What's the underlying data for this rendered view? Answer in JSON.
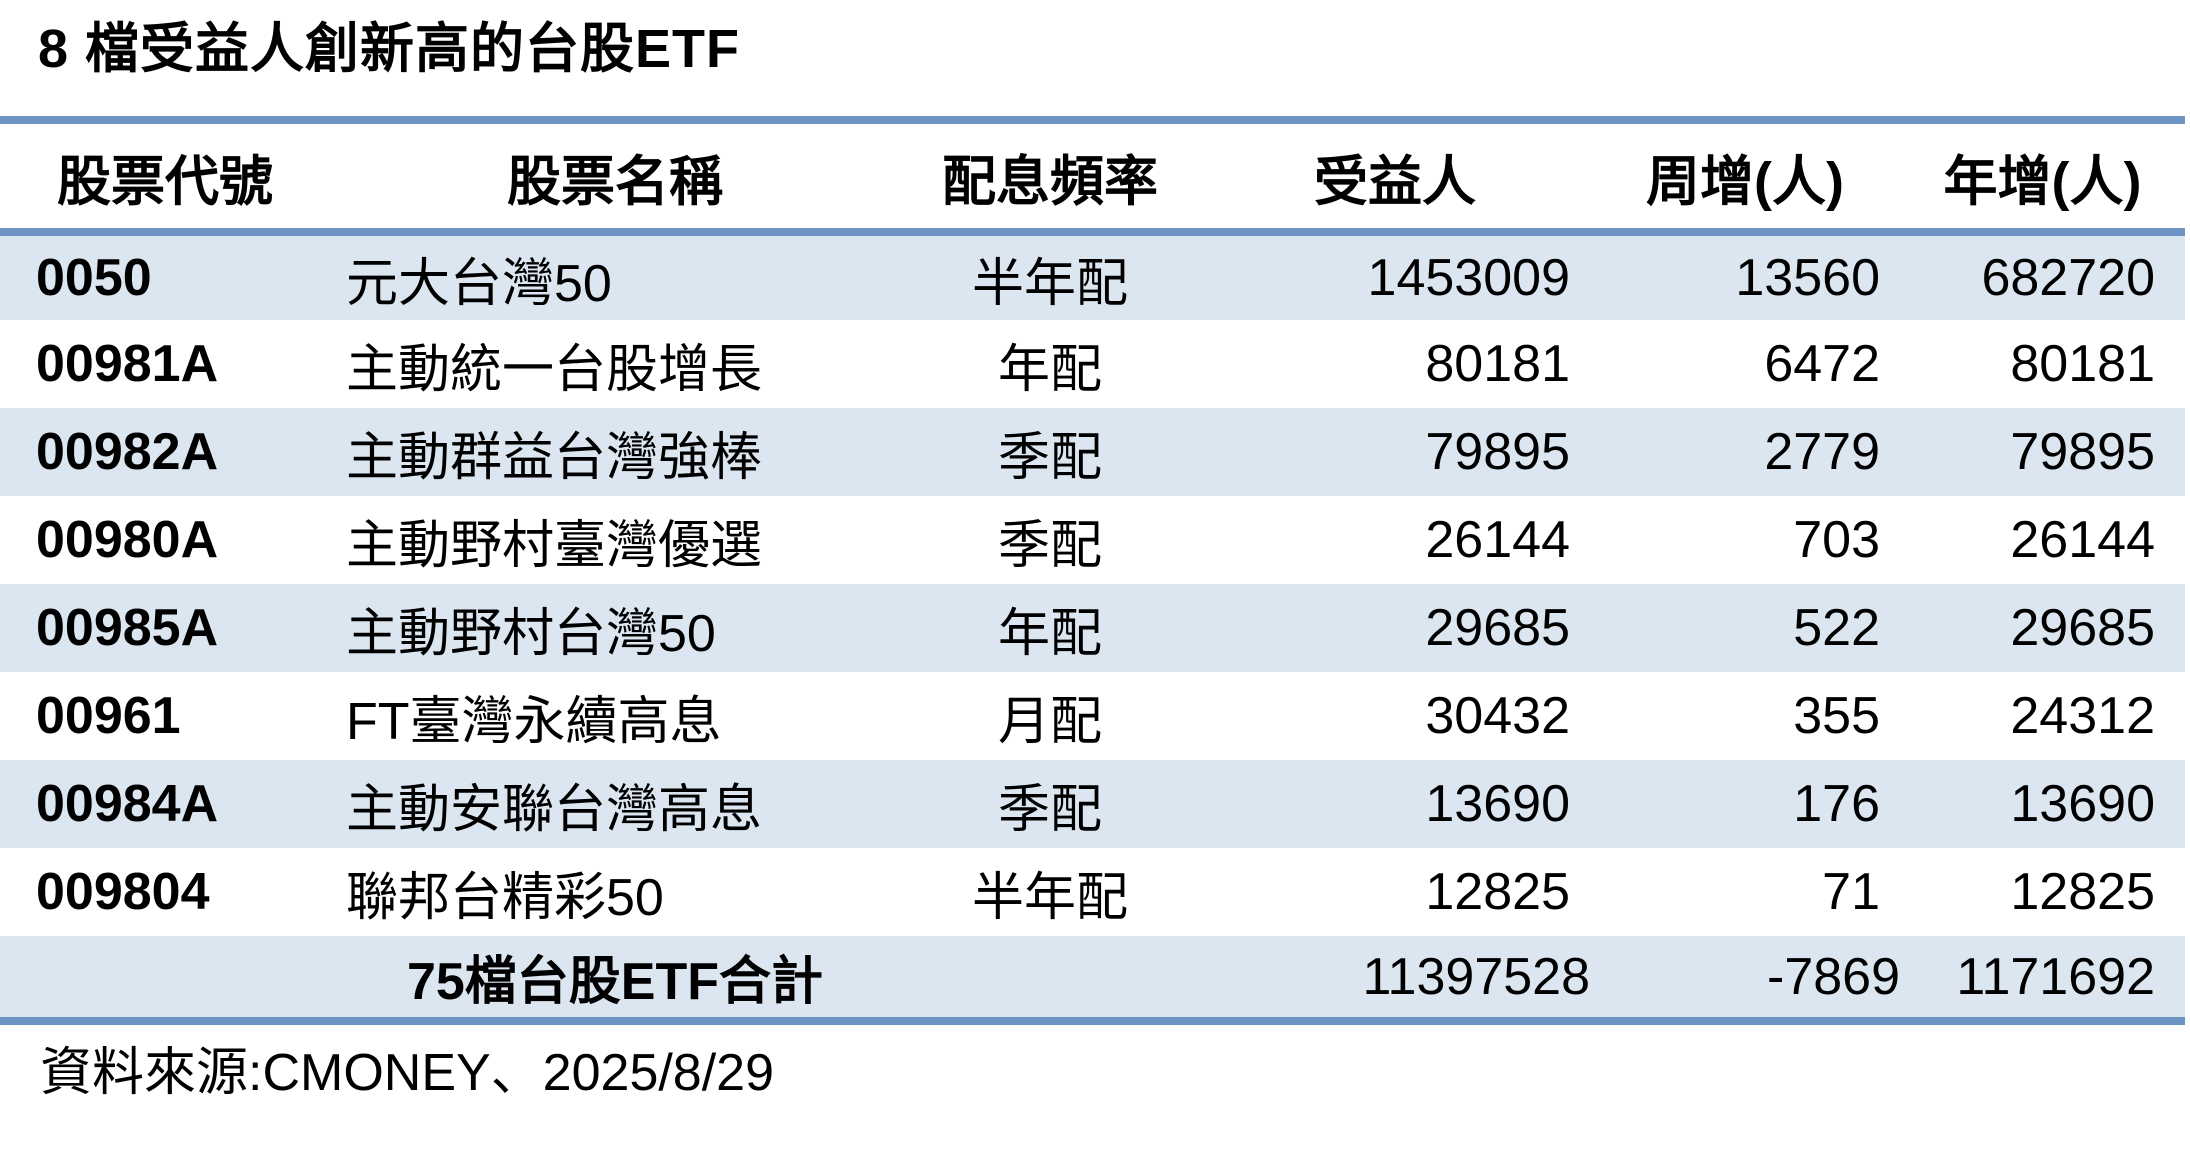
{
  "colors": {
    "stripe_blue": "#dce6f1",
    "rule_blue": "#6d92c4",
    "text_black": "#000000",
    "background_white": "#ffffff"
  },
  "chart_data": {
    "type": "table",
    "title": "8 檔受益人創新高的台股ETF",
    "columns": [
      "股票代號",
      "股票名稱",
      "配息頻率",
      "受益人",
      "周增(人)",
      "年增(人)"
    ],
    "rows": [
      [
        "0050",
        "元大台灣50",
        "半年配",
        "1453009",
        "13560",
        "682720"
      ],
      [
        "00981A",
        "主動統一台股增長",
        "年配",
        "80181",
        "6472",
        "80181"
      ],
      [
        "00982A",
        "主動群益台灣強棒",
        "季配",
        "79895",
        "2779",
        "79895"
      ],
      [
        "00980A",
        "主動野村臺灣優選",
        "季配",
        "26144",
        "703",
        "26144"
      ],
      [
        "00985A",
        "主動野村台灣50",
        "年配",
        "29685",
        "522",
        "29685"
      ],
      [
        "00961",
        "FT臺灣永續高息",
        "月配",
        "30432",
        "355",
        "24312"
      ],
      [
        "00984A",
        "主動安聯台灣高息",
        "季配",
        "13690",
        "176",
        "13690"
      ],
      [
        "009804",
        "聯邦台精彩50",
        "半年配",
        "12825",
        "71",
        "12825"
      ]
    ],
    "total_row": [
      "",
      "75檔台股ETF合計",
      "",
      "11397528",
      "-7869",
      "1171692"
    ],
    "source_note": "資料來源:CMONEY、2025/8/29",
    "layout": {
      "striped_rows": "odd",
      "grid": "off",
      "header_rule": true,
      "bottom_rule": true
    }
  }
}
